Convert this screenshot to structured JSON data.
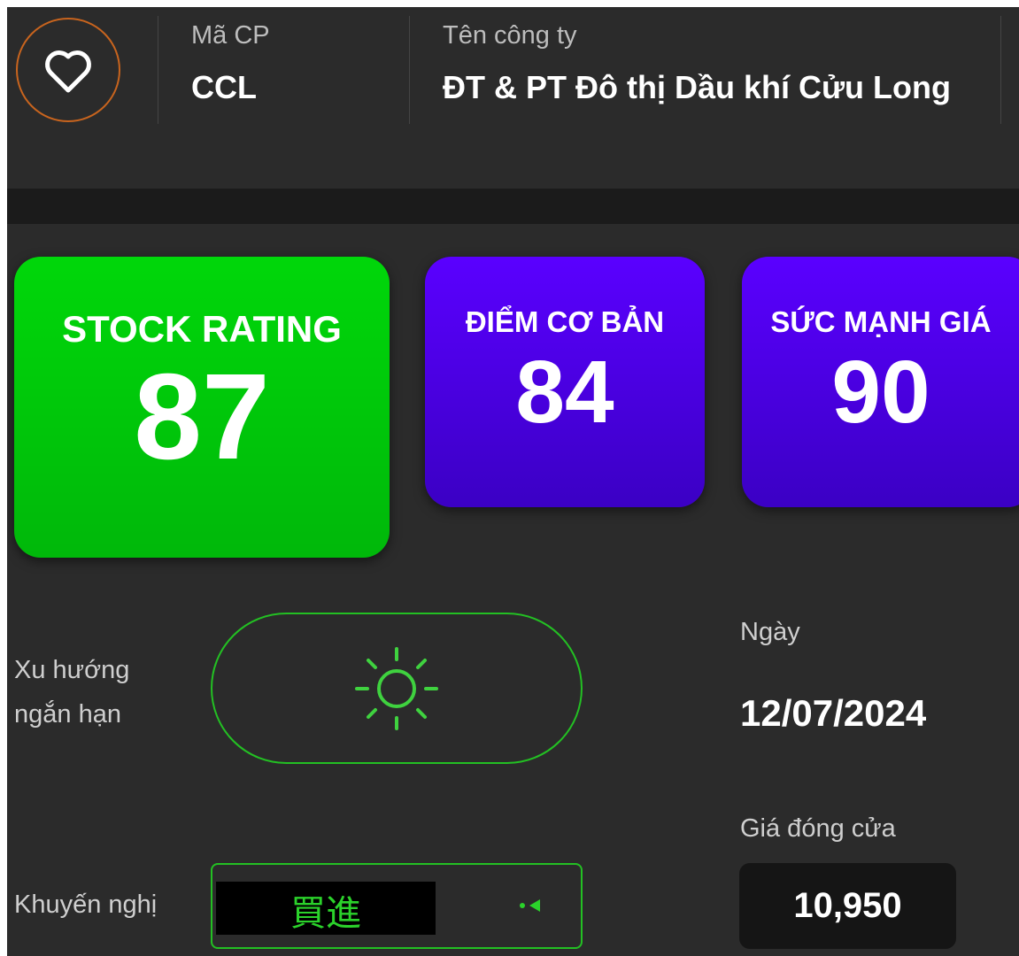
{
  "header": {
    "symbol_label": "Mã CP",
    "symbol": "CCL",
    "company_label": "Tên công ty",
    "company": "ĐT & PT Đô thị Dầu khí Cửu Long"
  },
  "ratings": [
    {
      "label": "STOCK RATING",
      "value": 87
    },
    {
      "label": "ĐIỂM CƠ BẢN",
      "value": 84
    },
    {
      "label": "SỨC MẠNH GIÁ",
      "value": 90
    }
  ],
  "trend": {
    "label": "Xu hướng ngắn hạn"
  },
  "date": {
    "label": "Ngày",
    "value": "12/07/2024"
  },
  "close": {
    "label": "Giá đóng cửa",
    "value": "10,950"
  },
  "recommendation": {
    "label": "Khuyến nghị",
    "value": "買進"
  }
}
